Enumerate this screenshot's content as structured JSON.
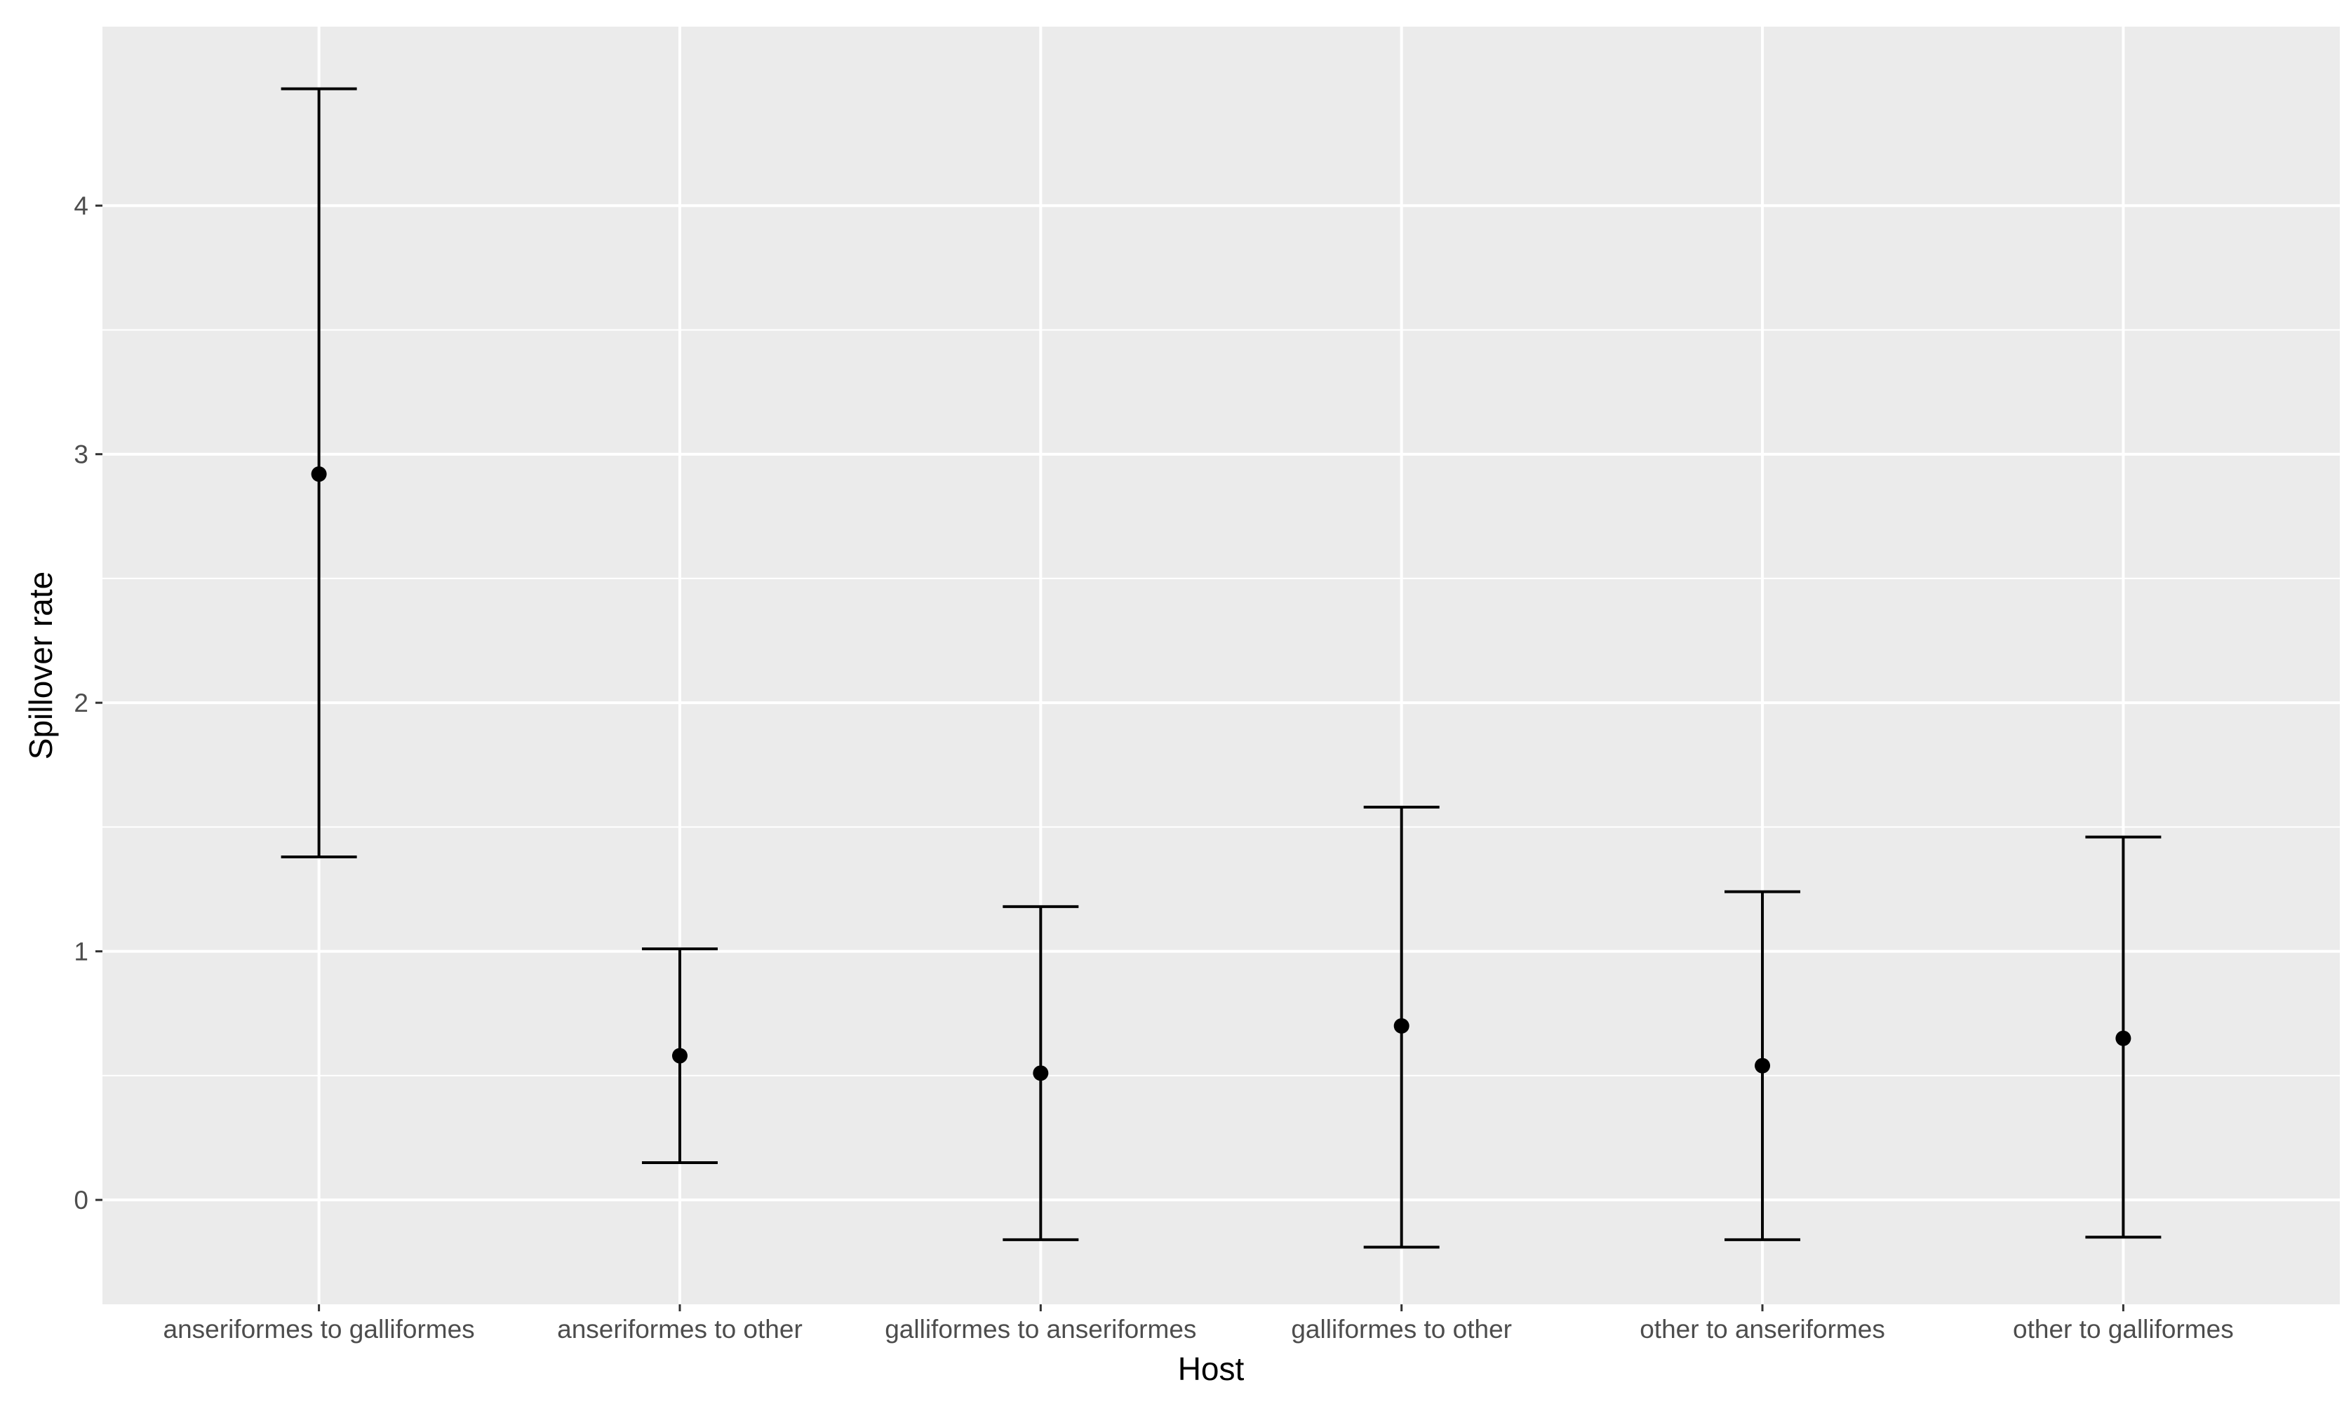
{
  "chart_data": {
    "type": "errorbar",
    "xlabel": "Host",
    "ylabel": "Spillover rate",
    "categories": [
      "anseriformes to galliformes",
      "anseriformes to other",
      "galliformes to anseriformes",
      "galliformes to other",
      "other to anseriformes",
      "other to galliformes"
    ],
    "values": [
      2.92,
      0.58,
      0.51,
      0.7,
      0.54,
      0.65
    ],
    "lower": [
      1.38,
      0.15,
      -0.16,
      -0.19,
      -0.16,
      -0.15
    ],
    "upper": [
      4.47,
      1.01,
      1.18,
      1.58,
      1.24,
      1.46
    ],
    "ylim": [
      -0.42,
      4.72
    ],
    "yticks": [
      0,
      1,
      2,
      3,
      4
    ],
    "grid": true,
    "legend": "none",
    "colors": {
      "panel_background": "#ebebeb",
      "gridline": "#ffffff",
      "mark": "#000000",
      "tick_text": "#4d4d4d"
    }
  }
}
